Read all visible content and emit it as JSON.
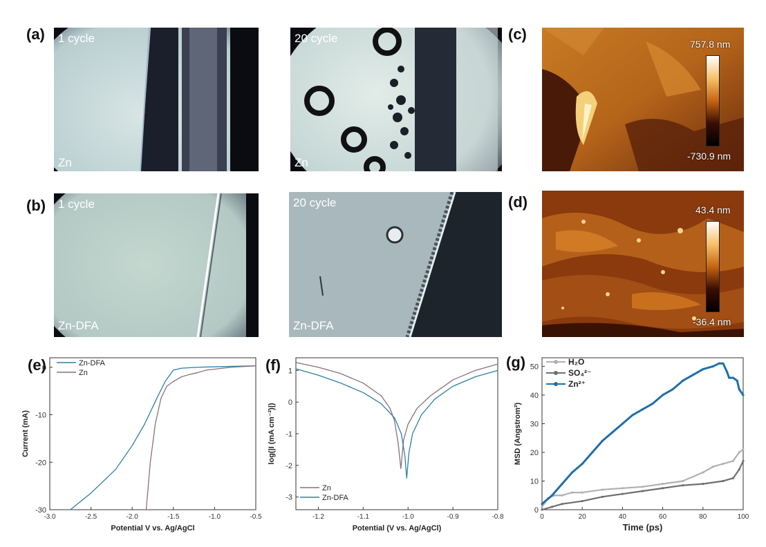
{
  "panels": {
    "a": {
      "label": "(a)",
      "left_text": "1 cycle",
      "left_sample": "Zn",
      "right_text": "20 cycle",
      "right_sample": "Zn"
    },
    "b": {
      "label": "(b)",
      "left_text": "1 cycle",
      "left_sample": "Zn-DFA",
      "right_text": "20 cycle",
      "right_sample": "Zn-DFA"
    },
    "c": {
      "label": "(c)",
      "scale_max": "757.8 nm",
      "scale_min": "-730.9 nm"
    },
    "d": {
      "label": "(d)",
      "scale_max": "43.4 nm",
      "scale_min": "-36.4 nm"
    },
    "e": {
      "label": "(e)"
    },
    "f": {
      "label": "(f)"
    },
    "g": {
      "label": "(g)"
    }
  },
  "colors": {
    "zn_dfa": "#2a7ea6",
    "zn": "#8a6f7a",
    "h2o": "#b0b0b0",
    "so4": "#6e6e6e",
    "zn2": "#1f6fa8"
  },
  "chart_data": [
    {
      "id": "e",
      "type": "line",
      "xlabel": "Potential V vs. Ag/AgCl",
      "ylabel": "Current (mA)",
      "xlim": [
        -3.0,
        -0.5
      ],
      "ylim": [
        -30,
        2
      ],
      "xticks": [
        "-3.0",
        "-2.5",
        "-2.0",
        "-1.5",
        "-1.0",
        "-0.5"
      ],
      "yticks": [
        "0",
        "-10",
        "-20",
        "-30"
      ],
      "legend": "top-left",
      "series": [
        {
          "name": "Zn-DFA",
          "x": [
            -2.75,
            -2.5,
            -2.2,
            -2.0,
            -1.85,
            -1.7,
            -1.6,
            -1.5,
            -1.4,
            -1.2,
            -1.0,
            -0.5
          ],
          "y": [
            -30,
            -26.5,
            -21.5,
            -16.5,
            -12.0,
            -6.5,
            -3.0,
            -0.6,
            -0.2,
            0.0,
            0.1,
            0.3
          ]
        },
        {
          "name": "Zn",
          "x": [
            -1.83,
            -1.78,
            -1.72,
            -1.65,
            -1.58,
            -1.5,
            -1.4,
            -1.3,
            -1.2,
            -1.1,
            -0.8,
            -0.5
          ],
          "y": [
            -30,
            -20.0,
            -12.0,
            -6.5,
            -4.0,
            -3.0,
            -2.0,
            -1.5,
            -1.1,
            -0.6,
            0.0,
            0.3
          ]
        }
      ]
    },
    {
      "id": "f",
      "type": "line",
      "xlabel": "Potential (V vs. Ag/AgCl)",
      "ylabel": "log(|I (mA cm⁻²)|)",
      "xlim": [
        -1.25,
        -0.8
      ],
      "ylim": [
        -3.4,
        1.4
      ],
      "xticks": [
        "-1.2",
        "-1.1",
        "-1.0",
        "-0.9",
        "-0.8"
      ],
      "yticks": [
        "1",
        "0",
        "-1",
        "-2",
        "-3"
      ],
      "legend": "bottom-left",
      "series": [
        {
          "name": "Zn",
          "x": [
            -1.25,
            -1.2,
            -1.15,
            -1.1,
            -1.06,
            -1.04,
            -1.03,
            -1.022,
            -1.016,
            -1.01,
            -1.0,
            -0.98,
            -0.95,
            -0.9,
            -0.85,
            -0.8
          ],
          "y": [
            1.25,
            1.1,
            0.9,
            0.6,
            0.2,
            -0.2,
            -0.6,
            -1.3,
            -2.1,
            -1.2,
            -0.7,
            -0.2,
            0.2,
            0.7,
            1.0,
            1.2
          ]
        },
        {
          "name": "Zn-DFA",
          "x": [
            -1.25,
            -1.2,
            -1.15,
            -1.1,
            -1.06,
            -1.03,
            -1.015,
            -1.007,
            -1.003,
            -0.998,
            -0.99,
            -0.97,
            -0.94,
            -0.9,
            -0.85,
            -0.8
          ],
          "y": [
            1.05,
            0.85,
            0.6,
            0.3,
            -0.05,
            -0.5,
            -1.0,
            -1.7,
            -2.4,
            -1.6,
            -1.0,
            -0.4,
            0.1,
            0.5,
            0.8,
            1.0
          ]
        }
      ]
    },
    {
      "id": "g",
      "type": "line",
      "xlabel": "Time (ps)",
      "ylabel": "MSD (Angstrom²)",
      "xlim": [
        0,
        100
      ],
      "ylim": [
        0,
        53
      ],
      "xticks": [
        "0",
        "20",
        "40",
        "60",
        "80",
        "100"
      ],
      "yticks": [
        "0",
        "10",
        "20",
        "30",
        "40",
        "50"
      ],
      "legend": "top-left",
      "series": [
        {
          "name": "H₂O",
          "x": [
            0,
            3,
            6,
            10,
            15,
            20,
            30,
            40,
            50,
            60,
            70,
            80,
            85,
            90,
            95,
            98,
            100
          ],
          "y": [
            1,
            4,
            5,
            5,
            6,
            6,
            7,
            7.5,
            8,
            9,
            10,
            13,
            15,
            16,
            17,
            20,
            21
          ]
        },
        {
          "name": "SO₄²⁻",
          "x": [
            0,
            5,
            10,
            20,
            30,
            40,
            50,
            60,
            70,
            80,
            90,
            95,
            98,
            100
          ],
          "y": [
            0,
            1,
            2,
            3,
            4.5,
            5.5,
            6.5,
            7.5,
            8.5,
            9,
            10,
            11,
            14,
            17
          ]
        },
        {
          "name": "Zn²⁺",
          "x": [
            0,
            5,
            10,
            15,
            20,
            25,
            30,
            35,
            40,
            45,
            50,
            55,
            60,
            65,
            70,
            75,
            80,
            85,
            88,
            90,
            92,
            93,
            95,
            97,
            98,
            100
          ],
          "y": [
            2,
            5,
            9,
            13,
            16,
            20,
            24,
            27,
            30,
            33,
            35,
            37,
            40,
            42,
            45,
            47,
            49,
            50,
            51,
            51,
            48,
            46,
            46,
            45,
            42,
            40
          ]
        }
      ]
    }
  ]
}
